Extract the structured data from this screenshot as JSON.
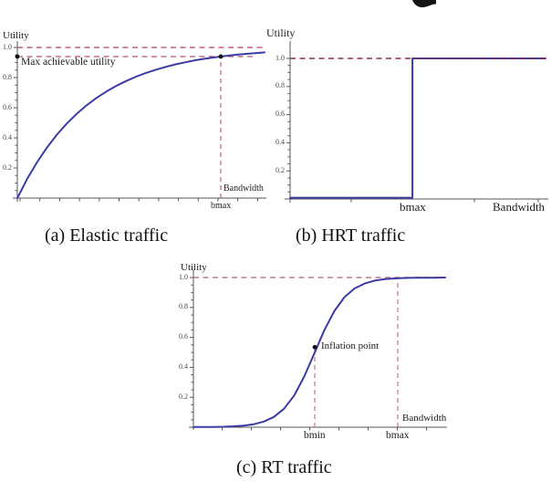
{
  "colors": {
    "curve_blue": "#3b3ba6",
    "dash_pink": "#c0607f",
    "dash_dark_red": "#8f2a55",
    "dash_pink_light": "#c27688",
    "axis_gray": "#555555",
    "text_black": "#1c1c1c"
  },
  "chart_data": [
    {
      "id": "a",
      "type": "line",
      "caption": "(a) Elastic traffic",
      "title": "(a) Elastic traffic",
      "ylabel": "Utility",
      "xlabel": "Bandwidth",
      "ylim": [
        0,
        1.08
      ],
      "grid": false,
      "legend": "none",
      "y_ticks": [
        0.2,
        0.4,
        0.6,
        0.8,
        1.0
      ],
      "y_tick_labels": [
        "0.2",
        "0.4",
        "0.6",
        "0.8",
        "1.0"
      ],
      "x_tick_labels": [
        {
          "label": "bmax",
          "f": 0.823
        }
      ],
      "annotation": "Max achievable utility",
      "max_achievable_utility": 0.94,
      "description": "Concave saturating utility u(b)=1-exp(-3.4b); utility reaches ~0.94 at bmax, asymptote 1.0 shown dashed",
      "curve": {
        "f": [
          0,
          0.04,
          0.08,
          0.12,
          0.16,
          0.2,
          0.24,
          0.28,
          0.32,
          0.36,
          0.4,
          0.44,
          0.48,
          0.52,
          0.56,
          0.6,
          0.64,
          0.68,
          0.72,
          0.76,
          0.8,
          0.84,
          0.88,
          0.92,
          0.96,
          1
        ],
        "u": [
          0,
          0.128,
          0.239,
          0.336,
          0.421,
          0.495,
          0.559,
          0.616,
          0.665,
          0.707,
          0.745,
          0.777,
          0.806,
          0.831,
          0.852,
          0.871,
          0.888,
          0.902,
          0.915,
          0.926,
          0.935,
          0.943,
          0.951,
          0.957,
          0.962,
          0.967
        ]
      },
      "guides_h": [
        {
          "u": 1.0,
          "f0": 0,
          "f1": 1
        },
        {
          "u": 0.94,
          "f0": 0,
          "f1": 0.955
        }
      ],
      "guides_v": [
        {
          "f": 0.823,
          "u0": 0,
          "u1": 0.94
        }
      ],
      "markers": [
        {
          "f": 0,
          "u": 0.94
        },
        {
          "f": 0.823,
          "u": 0.94
        }
      ]
    },
    {
      "id": "b",
      "type": "line",
      "caption": "(b) HRT traffic",
      "title": "(b) HRT traffic",
      "ylabel": "Utility",
      "xlabel": "Bandwidth",
      "ylim": [
        0,
        1.08
      ],
      "grid": false,
      "legend": "none",
      "y_ticks": [
        0.2,
        0.4,
        0.6,
        0.8,
        1.0
      ],
      "y_tick_labels": [
        "0.2",
        "0.4",
        "0.6",
        "0.8",
        "1.0"
      ],
      "x_tick_labels": [
        {
          "label": "bmax",
          "f": 0.479
        }
      ],
      "annotation": "",
      "description": "Hard step utility: u=0 for b<bmax, u=1 for b>=bmax; dashed line marks u=1.0",
      "curve": {
        "f": [
          0,
          0.479,
          0.479,
          1
        ],
        "u": [
          0.009,
          0.009,
          1,
          1
        ]
      },
      "guides_h": [
        {
          "u": 1.0,
          "f0": 0,
          "f1": 1
        }
      ],
      "guides_v": [],
      "markers": []
    },
    {
      "id": "c",
      "type": "line",
      "caption": "(c) RT traffic",
      "title": "(c) RT traffic",
      "ylabel": "Utility",
      "xlabel": "Bandwidth",
      "ylim": [
        0,
        1.08
      ],
      "grid": false,
      "legend": "none",
      "y_ticks": [
        0.2,
        0.4,
        0.6,
        0.8,
        1.0
      ],
      "y_tick_labels": [
        "0.2",
        "0.4",
        "0.6",
        "0.8",
        "1.0"
      ],
      "x_tick_labels": [
        {
          "label": "bmin",
          "f": 0.482
        },
        {
          "label": "bmax",
          "f": 0.812
        }
      ],
      "annotation": "Inflation point",
      "inflation_point_u": 0.53,
      "description": "Sigmoid utility with inflation point (u~0.5) at bmin; saturates to 1.0 near bmax (dashed guides at bmin, bmax and u=1.0)",
      "curve": {
        "f": [
          0,
          0.04,
          0.08,
          0.12,
          0.16,
          0.2,
          0.24,
          0.28,
          0.32,
          0.36,
          0.4,
          0.44,
          0.48,
          0.52,
          0.56,
          0.6,
          0.64,
          0.68,
          0.72,
          0.76,
          0.8,
          0.84,
          0.88,
          0.92,
          0.96,
          1
        ],
        "u": [
          0.001,
          0.001,
          0.002,
          0.003,
          0.006,
          0.011,
          0.02,
          0.038,
          0.069,
          0.124,
          0.211,
          0.338,
          0.492,
          0.648,
          0.777,
          0.869,
          0.927,
          0.96,
          0.979,
          0.989,
          0.994,
          0.997,
          0.998,
          0.999,
          0.999,
          1
        ]
      },
      "guides_h": [
        {
          "u": 1.0,
          "f0": 0,
          "f1": 1
        }
      ],
      "guides_v": [
        {
          "f": 0.482,
          "u0": 0,
          "u1": 0.535
        },
        {
          "f": 0.812,
          "u0": 0,
          "u1": 1.0
        }
      ],
      "markers": [
        {
          "f": 0.482,
          "u": 0.535
        }
      ]
    }
  ]
}
